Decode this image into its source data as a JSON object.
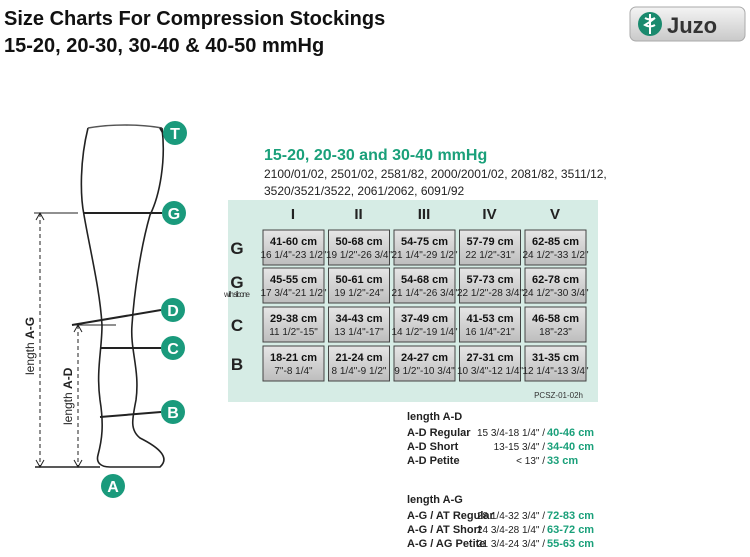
{
  "header": {
    "title": "Size Charts For Compression Stockings",
    "subtitle": "15-20, 20-30, 30-40 & 40-50 mmHg",
    "logo": "Juzo"
  },
  "diagram": {
    "points": [
      "T",
      "G",
      "D",
      "C",
      "B",
      "A"
    ],
    "length_ag": {
      "prefix": "length",
      "label": "A-G"
    },
    "length_ad": {
      "prefix": "length",
      "label": "A-D"
    }
  },
  "table": {
    "heading": "15-20, 20-30 and 30-40 mmHg",
    "models": [
      "2100/01/02, 2501/02, 2581/82, 2000/2001/02, 2081/82, 3511/12,",
      "3520/3521/3522, 2061/2062, 6091/92"
    ],
    "columns": [
      "I",
      "II",
      "III",
      "IV",
      "V"
    ],
    "rows": [
      {
        "label": "G",
        "cells": [
          [
            "41-60 cm",
            "16 1/4\"-23 1/2\""
          ],
          [
            "50-68 cm",
            "19 1/2\"-26 3/4\""
          ],
          [
            "54-75 cm",
            "21 1/4\"-29 1/2\""
          ],
          [
            "57-79 cm",
            "22 1/2\"-31\""
          ],
          [
            "62-85 cm",
            "24 1/2\"-33 1/2\""
          ]
        ]
      },
      {
        "label": "G",
        "note": "with silicone",
        "cells": [
          [
            "45-55 cm",
            "17 3/4\"-21 1/2\""
          ],
          [
            "50-61 cm",
            "19 1/2\"-24\""
          ],
          [
            "54-68 cm",
            "21 1/4\"-26 3/4\""
          ],
          [
            "57-73 cm",
            "22 1/2\"-28 3/4\""
          ],
          [
            "62-78 cm",
            "24 1/2\"-30 3/4\""
          ]
        ]
      },
      {
        "label": "C",
        "cells": [
          [
            "29-38 cm",
            "11 1/2\"-15\""
          ],
          [
            "34-43 cm",
            "13 1/4\"-17\""
          ],
          [
            "37-49 cm",
            "14 1/2\"-19 1/4\""
          ],
          [
            "41-53 cm",
            "16 1/4\"-21\""
          ],
          [
            "46-58 cm",
            "18\"-23\""
          ]
        ]
      },
      {
        "label": "B",
        "cells": [
          [
            "18-21 cm",
            "7\"-8 1/4\""
          ],
          [
            "21-24 cm",
            "8 1/4\"-9 1/2\""
          ],
          [
            "24-27 cm",
            "9 1/2\"-10 3/4\""
          ],
          [
            "27-31 cm",
            "10 3/4\"-12 1/4\""
          ],
          [
            "31-35 cm",
            "12 1/4\"-13 3/4\""
          ]
        ]
      }
    ],
    "code": "PCSZ-01-02h"
  },
  "lengths": [
    {
      "title": "length A-D",
      "rows": [
        {
          "label": "A-D Regular",
          "inch": "15 3/4-18 1/4\" /",
          "cm": "40-46 cm"
        },
        {
          "label": "A-D Short",
          "inch": "13-15 3/4\" /",
          "cm": "34-40 cm"
        },
        {
          "label": "A-D Petite",
          "inch": "< 13\" /",
          "cm": "33 cm"
        }
      ]
    },
    {
      "title": "length A-G",
      "rows": [
        {
          "label": "A-G / AT Regular",
          "inch": "28 1/4-32 3/4\" /",
          "cm": "72-83 cm"
        },
        {
          "label": "A-G / AT Short",
          "inch": "24 3/4-28 1/4\" /",
          "cm": "63-72 cm"
        },
        {
          "label": "A-G / AG Petite",
          "inch": "21 3/4-24 3/4\" /",
          "cm": "55-63 cm"
        }
      ]
    }
  ]
}
